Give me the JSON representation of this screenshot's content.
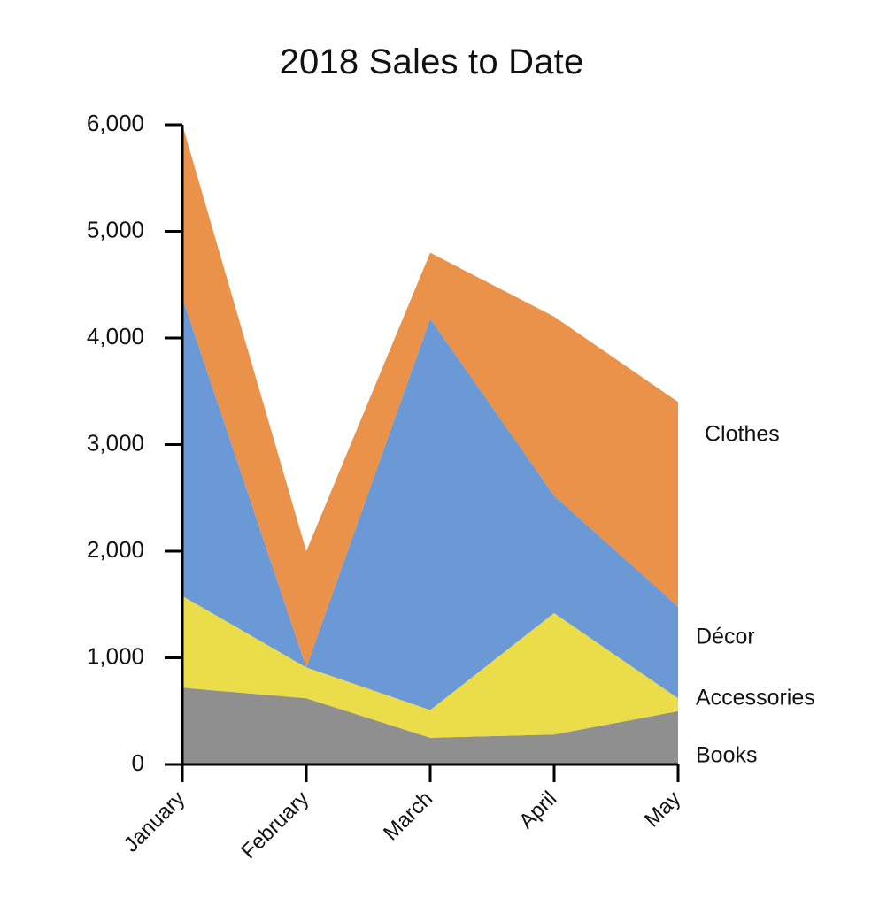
{
  "chart_data": {
    "type": "area",
    "stacked": true,
    "title": "2018 Sales to Date",
    "xlabel": "",
    "ylabel": "",
    "categories": [
      "January",
      "February",
      "March",
      "April",
      "May"
    ],
    "ylim": [
      0,
      6000
    ],
    "yticks": [
      0,
      1000,
      2000,
      3000,
      4000,
      5000,
      6000
    ],
    "ytick_labels": [
      "0",
      "1,000",
      "2,000",
      "3,000",
      "4,000",
      "5,000",
      "6,000"
    ],
    "grid": false,
    "legend_position": "inline-right",
    "series": [
      {
        "name": "Books",
        "color": "#8f8f8f",
        "values": [
          720,
          620,
          250,
          280,
          500
        ]
      },
      {
        "name": "Accessories",
        "color": "#ebdc4a",
        "values": [
          860,
          290,
          260,
          1140,
          120
        ]
      },
      {
        "name": "Décor",
        "color": "#6a99d6",
        "values": [
          2800,
          0,
          3670,
          1100,
          860
        ]
      },
      {
        "name": "Clothes",
        "color": "#ea9249",
        "values": [
          1620,
          1090,
          620,
          1680,
          1920
        ]
      }
    ]
  },
  "labels": {
    "title": "2018 Sales to Date",
    "series_labels": [
      "Books",
      "Accessories",
      "Décor",
      "Clothes"
    ]
  }
}
